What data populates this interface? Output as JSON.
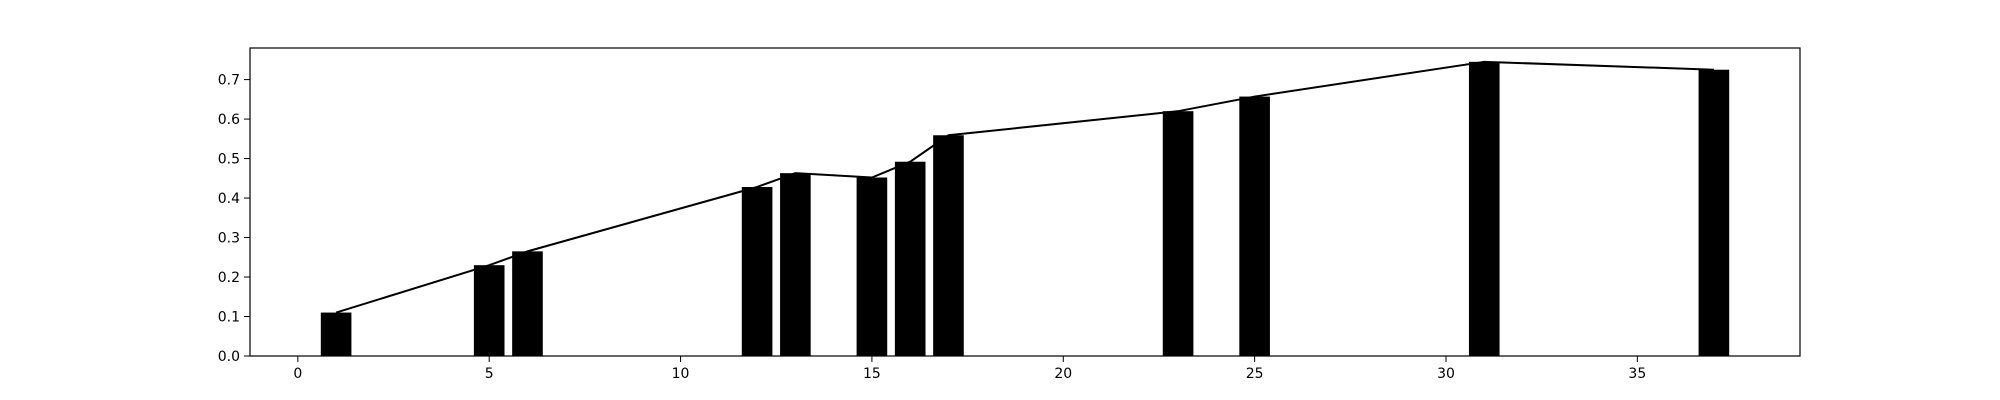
{
  "chart_data": {
    "type": "bar",
    "x": [
      1,
      5,
      6,
      12,
      13,
      15,
      16,
      17,
      23,
      25,
      31,
      37
    ],
    "values": [
      0.11,
      0.23,
      0.265,
      0.428,
      0.463,
      0.452,
      0.492,
      0.559,
      0.62,
      0.657,
      0.745,
      0.725
    ],
    "line_overlay": true,
    "xlim": [
      -1.25,
      39.25
    ],
    "ylim": [
      0,
      0.78
    ],
    "xticks": [
      "0",
      "5",
      "10",
      "15",
      "20",
      "25",
      "30",
      "35"
    ],
    "yticks": [
      "0.0",
      "0.1",
      "0.2",
      "0.3",
      "0.4",
      "0.5",
      "0.6",
      "0.7"
    ],
    "title": "",
    "xlabel": "",
    "ylabel": "",
    "grid": false,
    "bar_color": "#000000",
    "line_color": "#000000"
  }
}
